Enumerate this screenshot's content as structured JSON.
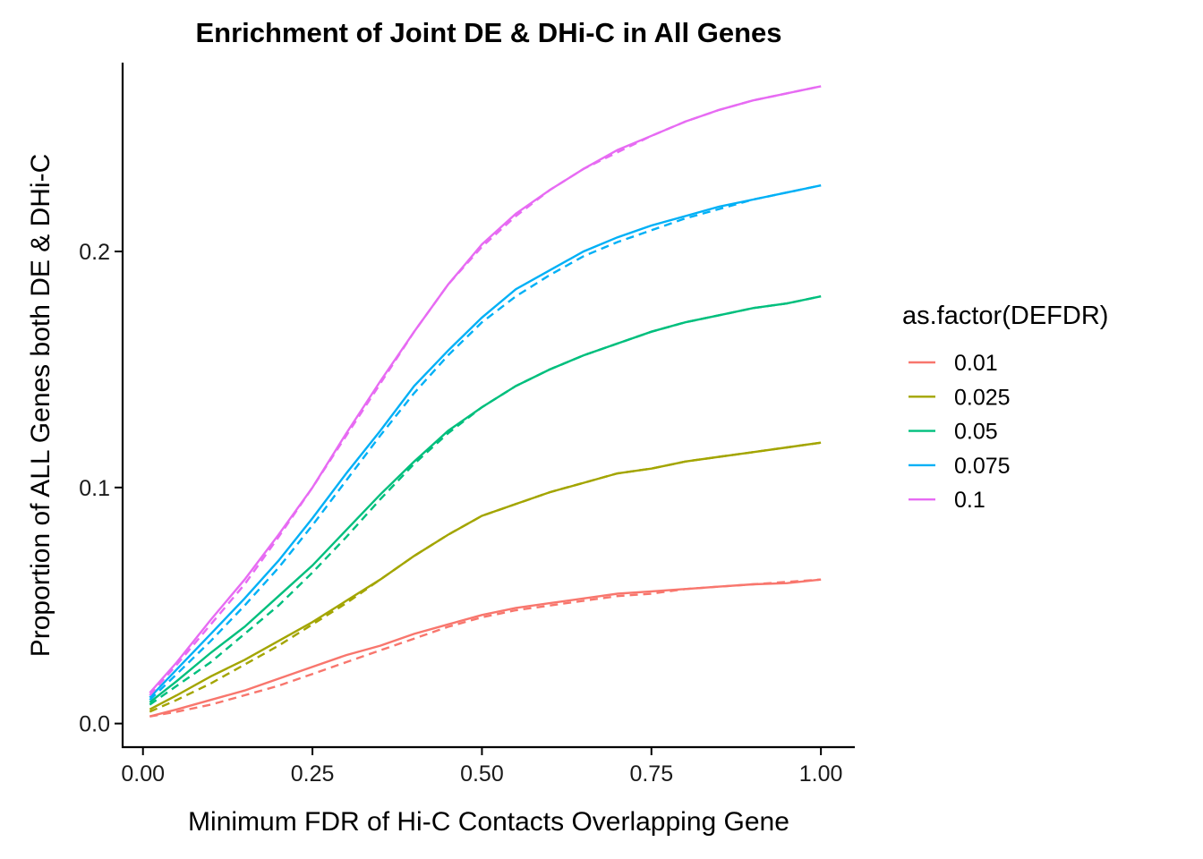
{
  "chart_data": {
    "type": "line",
    "title": "Enrichment of Joint DE & DHi-C in All Genes",
    "xlabel": "Minimum FDR of Hi-C Contacts Overlapping Gene",
    "ylabel": "Proportion of ALL Genes both DE & DHi-C",
    "xlim": [
      -0.03,
      1.05
    ],
    "ylim": [
      -0.01,
      0.28
    ],
    "x_ticks": [
      0.0,
      0.25,
      0.5,
      0.75,
      1.0
    ],
    "x_tick_labels": [
      "0.00",
      "0.25",
      "0.50",
      "0.75",
      "1.00"
    ],
    "y_ticks": [
      0.0,
      0.1,
      0.2
    ],
    "y_tick_labels": [
      "0.0",
      "0.1",
      "0.2"
    ],
    "grid": false,
    "legend": {
      "title": "as.factor(DEFDR)",
      "position": "right"
    },
    "x": [
      0.01,
      0.05,
      0.1,
      0.15,
      0.2,
      0.25,
      0.3,
      0.35,
      0.4,
      0.45,
      0.5,
      0.55,
      0.6,
      0.65,
      0.7,
      0.75,
      0.8,
      0.85,
      0.9,
      0.95,
      1.0
    ],
    "series": [
      {
        "name": "0.01",
        "color": "#F8766D",
        "values": [
          0.003,
          0.006,
          0.01,
          0.014,
          0.019,
          0.024,
          0.029,
          0.033,
          0.038,
          0.042,
          0.046,
          0.049,
          0.051,
          0.053,
          0.055,
          0.056,
          0.057,
          0.058,
          0.059,
          0.0595,
          0.061
        ],
        "dashed_values": [
          0.003,
          0.005,
          0.008,
          0.012,
          0.016,
          0.021,
          0.026,
          0.031,
          0.036,
          0.041,
          0.045,
          0.048,
          0.05,
          0.052,
          0.054,
          0.055,
          0.057,
          0.058,
          0.059,
          0.06,
          0.061
        ]
      },
      {
        "name": "0.025",
        "color": "#A3A500",
        "values": [
          0.006,
          0.012,
          0.02,
          0.027,
          0.035,
          0.043,
          0.052,
          0.061,
          0.071,
          0.08,
          0.088,
          0.093,
          0.098,
          0.102,
          0.106,
          0.108,
          0.111,
          0.113,
          0.115,
          0.117,
          0.119
        ],
        "dashed_values": [
          0.005,
          0.01,
          0.017,
          0.025,
          0.033,
          0.042,
          0.051,
          0.061,
          0.071,
          0.08,
          0.088,
          0.093,
          0.098,
          0.102,
          0.106,
          0.108,
          0.111,
          0.113,
          0.115,
          0.117,
          0.119
        ]
      },
      {
        "name": "0.05",
        "color": "#00BF7D",
        "values": [
          0.009,
          0.018,
          0.03,
          0.041,
          0.054,
          0.067,
          0.082,
          0.097,
          0.111,
          0.124,
          0.134,
          0.143,
          0.15,
          0.156,
          0.161,
          0.166,
          0.17,
          0.173,
          0.176,
          0.178,
          0.181
        ],
        "dashed_values": [
          0.008,
          0.016,
          0.026,
          0.038,
          0.05,
          0.064,
          0.079,
          0.095,
          0.11,
          0.123,
          0.134,
          0.143,
          0.15,
          0.156,
          0.161,
          0.166,
          0.17,
          0.173,
          0.176,
          0.178,
          0.181
        ]
      },
      {
        "name": "0.075",
        "color": "#00B0F6",
        "values": [
          0.011,
          0.023,
          0.038,
          0.053,
          0.069,
          0.087,
          0.106,
          0.124,
          0.143,
          0.158,
          0.172,
          0.184,
          0.192,
          0.2,
          0.206,
          0.211,
          0.215,
          0.219,
          0.222,
          0.225,
          0.228
        ],
        "dashed_values": [
          0.01,
          0.021,
          0.035,
          0.05,
          0.066,
          0.084,
          0.103,
          0.122,
          0.14,
          0.156,
          0.17,
          0.181,
          0.19,
          0.198,
          0.204,
          0.209,
          0.214,
          0.218,
          0.222,
          0.225,
          0.228
        ]
      },
      {
        "name": "0.1",
        "color": "#E76BF3",
        "values": [
          0.013,
          0.026,
          0.044,
          0.061,
          0.08,
          0.1,
          0.123,
          0.145,
          0.166,
          0.186,
          0.203,
          0.216,
          0.226,
          0.235,
          0.243,
          0.249,
          0.255,
          0.26,
          0.264,
          0.267,
          0.27
        ],
        "dashed_values": [
          0.012,
          0.025,
          0.042,
          0.059,
          0.079,
          0.1,
          0.122,
          0.144,
          0.166,
          0.186,
          0.202,
          0.215,
          0.226,
          0.235,
          0.242,
          0.249,
          0.255,
          0.26,
          0.264,
          0.267,
          0.27
        ]
      }
    ]
  }
}
